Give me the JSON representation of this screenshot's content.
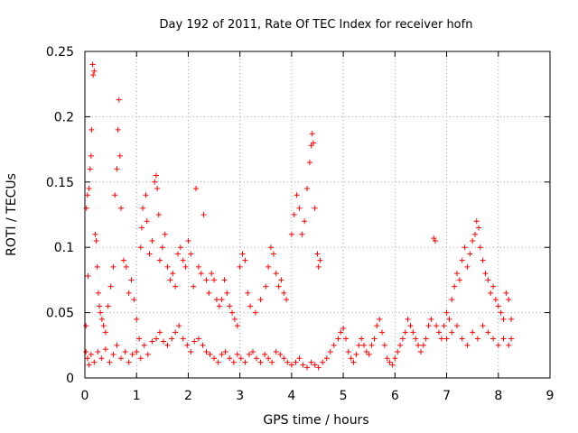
{
  "chart_data": {
    "type": "scatter",
    "title": "Day 192 of 2011, Rate Of TEC Index for receiver hofn",
    "xlabel": "GPS time / hours",
    "ylabel": "ROTI / TECUs",
    "xlim": [
      0,
      9
    ],
    "ylim": [
      0,
      0.25
    ],
    "xticks": [
      "0",
      "1",
      "2",
      "3",
      "4",
      "5",
      "6",
      "7",
      "8",
      "9"
    ],
    "yticks": [
      "0",
      "0.05",
      "0.1",
      "0.15",
      "0.2",
      "0.25"
    ],
    "grid": true,
    "marker": "+",
    "color": "#ff0000",
    "series": [
      {
        "points": [
          [
            0.02,
            0.04
          ],
          [
            0.03,
            0.13
          ],
          [
            0.05,
            0.14
          ],
          [
            0.06,
            0.078
          ],
          [
            0.08,
            0.145
          ],
          [
            0.1,
            0.16
          ],
          [
            0.12,
            0.17
          ],
          [
            0.13,
            0.19
          ],
          [
            0.15,
            0.24
          ],
          [
            0.16,
            0.232
          ],
          [
            0.18,
            0.235
          ],
          [
            0.2,
            0.11
          ],
          [
            0.22,
            0.105
          ],
          [
            0.24,
            0.085
          ],
          [
            0.26,
            0.065
          ],
          [
            0.28,
            0.055
          ],
          [
            0.3,
            0.05
          ],
          [
            0.33,
            0.045
          ],
          [
            0.36,
            0.04
          ],
          [
            0.4,
            0.035
          ],
          [
            0.45,
            0.055
          ],
          [
            0.5,
            0.07
          ],
          [
            0.55,
            0.085
          ],
          [
            0.58,
            0.14
          ],
          [
            0.62,
            0.16
          ],
          [
            0.64,
            0.19
          ],
          [
            0.66,
            0.213
          ],
          [
            0.68,
            0.17
          ],
          [
            0.7,
            0.13
          ],
          [
            0.75,
            0.09
          ],
          [
            0.8,
            0.085
          ],
          [
            0.85,
            0.065
          ],
          [
            0.9,
            0.075
          ],
          [
            0.95,
            0.06
          ],
          [
            1.0,
            0.045
          ],
          [
            1.05,
            0.03
          ],
          [
            1.08,
            0.1
          ],
          [
            1.1,
            0.115
          ],
          [
            1.12,
            0.13
          ],
          [
            1.18,
            0.14
          ],
          [
            1.2,
            0.12
          ],
          [
            1.25,
            0.095
          ],
          [
            1.3,
            0.105
          ],
          [
            1.35,
            0.15
          ],
          [
            1.38,
            0.155
          ],
          [
            1.4,
            0.145
          ],
          [
            1.43,
            0.125
          ],
          [
            1.45,
            0.09
          ],
          [
            1.5,
            0.1
          ],
          [
            1.55,
            0.11
          ],
          [
            1.6,
            0.085
          ],
          [
            1.65,
            0.075
          ],
          [
            1.7,
            0.08
          ],
          [
            1.75,
            0.07
          ],
          [
            1.8,
            0.095
          ],
          [
            1.85,
            0.1
          ],
          [
            1.9,
            0.09
          ],
          [
            1.95,
            0.085
          ],
          [
            2.0,
            0.105
          ],
          [
            2.05,
            0.095
          ],
          [
            2.1,
            0.07
          ],
          [
            2.15,
            0.145
          ],
          [
            2.2,
            0.085
          ],
          [
            2.25,
            0.08
          ],
          [
            2.3,
            0.125
          ],
          [
            2.35,
            0.075
          ],
          [
            2.4,
            0.065
          ],
          [
            2.45,
            0.08
          ],
          [
            2.5,
            0.075
          ],
          [
            2.55,
            0.06
          ],
          [
            2.6,
            0.055
          ],
          [
            2.65,
            0.06
          ],
          [
            2.7,
            0.075
          ],
          [
            2.75,
            0.065
          ],
          [
            2.8,
            0.055
          ],
          [
            2.85,
            0.05
          ],
          [
            2.9,
            0.045
          ],
          [
            2.95,
            0.04
          ],
          [
            3.0,
            0.085
          ],
          [
            3.05,
            0.095
          ],
          [
            3.1,
            0.09
          ],
          [
            3.15,
            0.065
          ],
          [
            3.2,
            0.055
          ],
          [
            3.3,
            0.05
          ],
          [
            3.4,
            0.06
          ],
          [
            3.5,
            0.07
          ],
          [
            3.55,
            0.085
          ],
          [
            3.6,
            0.1
          ],
          [
            3.65,
            0.095
          ],
          [
            3.7,
            0.08
          ],
          [
            3.75,
            0.07
          ],
          [
            3.8,
            0.075
          ],
          [
            3.85,
            0.065
          ],
          [
            3.9,
            0.06
          ],
          [
            4.0,
            0.11
          ],
          [
            4.05,
            0.125
          ],
          [
            4.1,
            0.14
          ],
          [
            4.15,
            0.13
          ],
          [
            4.2,
            0.11
          ],
          [
            4.25,
            0.12
          ],
          [
            4.3,
            0.145
          ],
          [
            4.35,
            0.165
          ],
          [
            4.38,
            0.178
          ],
          [
            4.4,
            0.187
          ],
          [
            4.42,
            0.18
          ],
          [
            4.45,
            0.13
          ],
          [
            4.5,
            0.095
          ],
          [
            4.52,
            0.085
          ],
          [
            4.55,
            0.09
          ],
          [
            0.02,
            0.02
          ],
          [
            0.05,
            0.015
          ],
          [
            0.08,
            0.01
          ],
          [
            0.12,
            0.018
          ],
          [
            0.18,
            0.012
          ],
          [
            0.25,
            0.02
          ],
          [
            0.32,
            0.015
          ],
          [
            0.4,
            0.022
          ],
          [
            0.48,
            0.012
          ],
          [
            0.55,
            0.018
          ],
          [
            0.62,
            0.025
          ],
          [
            0.7,
            0.015
          ],
          [
            0.78,
            0.02
          ],
          [
            0.85,
            0.012
          ],
          [
            0.92,
            0.018
          ],
          [
            1.0,
            0.02
          ],
          [
            1.08,
            0.015
          ],
          [
            1.15,
            0.025
          ],
          [
            1.22,
            0.018
          ],
          [
            1.3,
            0.028
          ],
          [
            1.38,
            0.03
          ],
          [
            1.45,
            0.035
          ],
          [
            1.52,
            0.028
          ],
          [
            1.6,
            0.025
          ],
          [
            1.68,
            0.03
          ],
          [
            1.75,
            0.035
          ],
          [
            1.82,
            0.04
          ],
          [
            1.9,
            0.03
          ],
          [
            1.98,
            0.025
          ],
          [
            2.05,
            0.02
          ],
          [
            2.12,
            0.028
          ],
          [
            2.2,
            0.03
          ],
          [
            2.28,
            0.025
          ],
          [
            2.35,
            0.02
          ],
          [
            2.42,
            0.018
          ],
          [
            2.5,
            0.015
          ],
          [
            2.58,
            0.012
          ],
          [
            2.65,
            0.018
          ],
          [
            2.72,
            0.02
          ],
          [
            2.8,
            0.015
          ],
          [
            2.88,
            0.012
          ],
          [
            2.95,
            0.018
          ],
          [
            3.02,
            0.015
          ],
          [
            3.1,
            0.012
          ],
          [
            3.18,
            0.018
          ],
          [
            3.25,
            0.02
          ],
          [
            3.32,
            0.015
          ],
          [
            3.4,
            0.012
          ],
          [
            3.48,
            0.018
          ],
          [
            3.55,
            0.015
          ],
          [
            3.62,
            0.012
          ],
          [
            3.7,
            0.02
          ],
          [
            3.78,
            0.018
          ],
          [
            3.85,
            0.015
          ],
          [
            3.92,
            0.012
          ],
          [
            4.0,
            0.01
          ],
          [
            4.08,
            0.012
          ],
          [
            4.15,
            0.015
          ],
          [
            4.22,
            0.01
          ],
          [
            4.3,
            0.008
          ],
          [
            4.38,
            0.012
          ],
          [
            4.45,
            0.01
          ],
          [
            4.52,
            0.008
          ],
          [
            4.6,
            0.012
          ],
          [
            4.68,
            0.015
          ],
          [
            4.75,
            0.02
          ],
          [
            4.82,
            0.025
          ],
          [
            4.9,
            0.03
          ],
          [
            4.95,
            0.035
          ],
          [
            5.0,
            0.038
          ],
          [
            5.05,
            0.03
          ],
          [
            5.1,
            0.02
          ],
          [
            5.15,
            0.015
          ],
          [
            5.2,
            0.012
          ],
          [
            5.25,
            0.018
          ],
          [
            5.3,
            0.025
          ],
          [
            5.35,
            0.03
          ],
          [
            5.4,
            0.025
          ],
          [
            5.45,
            0.02
          ],
          [
            5.5,
            0.018
          ],
          [
            5.55,
            0.025
          ],
          [
            5.6,
            0.03
          ],
          [
            5.65,
            0.04
          ],
          [
            5.7,
            0.045
          ],
          [
            5.75,
            0.035
          ],
          [
            5.8,
            0.025
          ],
          [
            5.85,
            0.015
          ],
          [
            5.9,
            0.012
          ],
          [
            5.95,
            0.01
          ],
          [
            6.0,
            0.015
          ],
          [
            6.05,
            0.02
          ],
          [
            6.1,
            0.025
          ],
          [
            6.15,
            0.03
          ],
          [
            6.2,
            0.035
          ],
          [
            6.25,
            0.045
          ],
          [
            6.3,
            0.04
          ],
          [
            6.35,
            0.035
          ],
          [
            6.4,
            0.03
          ],
          [
            6.45,
            0.025
          ],
          [
            6.5,
            0.02
          ],
          [
            6.55,
            0.025
          ],
          [
            6.6,
            0.03
          ],
          [
            6.65,
            0.04
          ],
          [
            6.7,
            0.045
          ],
          [
            6.75,
            0.107
          ],
          [
            6.78,
            0.105
          ],
          [
            6.8,
            0.04
          ],
          [
            6.85,
            0.035
          ],
          [
            6.9,
            0.03
          ],
          [
            6.95,
            0.04
          ],
          [
            7.0,
            0.05
          ],
          [
            7.05,
            0.045
          ],
          [
            7.1,
            0.06
          ],
          [
            7.15,
            0.07
          ],
          [
            7.2,
            0.08
          ],
          [
            7.25,
            0.075
          ],
          [
            7.3,
            0.09
          ],
          [
            7.35,
            0.1
          ],
          [
            7.4,
            0.085
          ],
          [
            7.45,
            0.095
          ],
          [
            7.5,
            0.105
          ],
          [
            7.55,
            0.11
          ],
          [
            7.58,
            0.12
          ],
          [
            7.62,
            0.115
          ],
          [
            7.65,
            0.1
          ],
          [
            7.7,
            0.09
          ],
          [
            7.75,
            0.08
          ],
          [
            7.8,
            0.075
          ],
          [
            7.85,
            0.065
          ],
          [
            7.9,
            0.07
          ],
          [
            7.95,
            0.06
          ],
          [
            8.0,
            0.055
          ],
          [
            8.05,
            0.05
          ],
          [
            8.1,
            0.045
          ],
          [
            8.15,
            0.065
          ],
          [
            8.2,
            0.06
          ],
          [
            8.25,
            0.045
          ],
          [
            7.0,
            0.03
          ],
          [
            7.1,
            0.035
          ],
          [
            7.2,
            0.04
          ],
          [
            7.3,
            0.03
          ],
          [
            7.4,
            0.025
          ],
          [
            7.5,
            0.035
          ],
          [
            7.6,
            0.03
          ],
          [
            7.7,
            0.04
          ],
          [
            7.8,
            0.035
          ],
          [
            7.9,
            0.03
          ],
          [
            8.0,
            0.025
          ],
          [
            8.1,
            0.03
          ],
          [
            8.2,
            0.025
          ],
          [
            8.25,
            0.03
          ]
        ]
      }
    ]
  }
}
